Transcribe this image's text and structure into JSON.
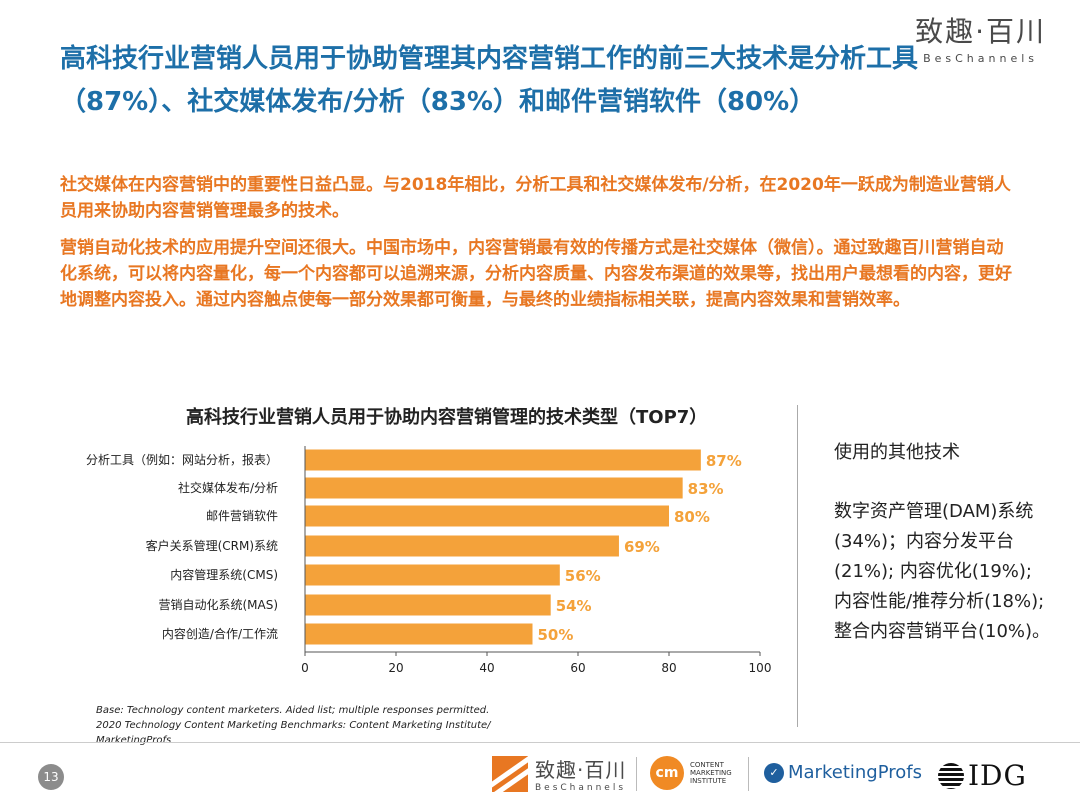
{
  "brand": {
    "cn": "致趣·百川",
    "en": "BesChannels"
  },
  "headline": "高科技行业营销人员用于协助管理其内容营销工作的前三大技术是分析工具（87%）、社交媒体发布/分析（83%）和邮件营销软件（80%）",
  "intro": [
    "社交媒体在内容营销中的重要性日益凸显。与2018年相比，分析工具和社交媒体发布/分析，在2020年一跃成为制造业营销人员用来协助内容营销管理最多的技术。",
    "营销自动化技术的应用提升空间还很大。中国市场中，内容营销最有效的传播方式是社交媒体（微信）。通过致趣百川营销自动化系统，可以将内容量化，每一个内容都可以追溯来源，分析内容质量、内容发布渠道的效果等，找出用户最想看的内容，更好地调整内容投入。通过内容触点使每一部分效果都可衡量，与最终的业绩指标相关联，提高内容效果和营销效率。"
  ],
  "chart_data": {
    "type": "bar",
    "orientation": "horizontal",
    "title": "高科技行业营销人员用于协助内容营销管理的技术类型（TOP7）",
    "categories": [
      "分析工具（例如：网站分析，报表）",
      "社交媒体发布/分析",
      "邮件营销软件",
      "客户关系管理(CRM)系统",
      "内容管理系统(CMS)",
      "营销自动化系统(MAS)",
      "内容创造/合作/工作流"
    ],
    "values": [
      87,
      83,
      80,
      69,
      56,
      54,
      50
    ],
    "value_labels": [
      "87%",
      "83%",
      "80%",
      "69%",
      "56%",
      "54%",
      "50%"
    ],
    "xlim": [
      0,
      100
    ],
    "xticks": [
      "0",
      "20",
      "40",
      "60",
      "80",
      "100"
    ],
    "xlabel": "",
    "ylabel": "",
    "grid": false,
    "legend": "none",
    "bar_color": "#f4a23a",
    "label_color": "#f4a23a"
  },
  "other": {
    "title": "使用的其他技术",
    "body": "数字资产管理(DAM)系统(34%)；内容分发平台(21%); 内容优化(19%); 内容性能/推荐分析(18%);整合内容营销平台(10%)。"
  },
  "base_note": "Base: Technology content marketers. Aided list; multiple responses permitted. 2020 Technology Content Marketing Benchmarks: Content Marketing Institute/ MarketingProfs",
  "page_number": "13",
  "logos": {
    "beschannels_cn": "致趣·百川",
    "beschannels_en": "BesChannels",
    "cmi_mark": "cm",
    "cmi_text": [
      "CONTENT",
      "MARKETING",
      "INSTITUTE"
    ],
    "marketingprofs": "MarketingProfs",
    "idg": "IDG"
  },
  "colors": {
    "headline": "#1d6fa8",
    "accent_orange": "#e87722",
    "bar": "#f4a23a"
  }
}
